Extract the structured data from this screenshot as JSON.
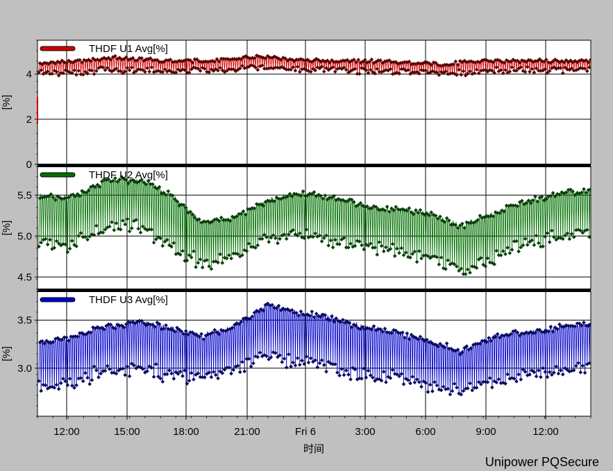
{
  "chart_data": {
    "type": "line",
    "x_axis": {
      "title": "时间",
      "ticks": [
        "12:00",
        "15:00",
        "18:00",
        "21:00",
        "Fri 6",
        "3:00",
        "6:00",
        "9:00",
        "12:00"
      ],
      "grid": true
    },
    "panels": [
      {
        "series_name": "THDF U1 Avg[%]",
        "color": "#d00000",
        "marker_color": "#5a0000",
        "ylabel": "[%]",
        "ylim": [
          0,
          5.5
        ],
        "y_ticks": [
          "4",
          "2",
          "0"
        ],
        "y_tick_values": [
          4,
          2,
          0
        ],
        "grid": true,
        "upper_envelope": [
          4.5,
          4.6,
          4.75,
          4.65,
          4.6,
          4.65,
          4.8,
          4.65,
          4.6,
          4.6,
          4.55,
          4.45,
          4.6,
          4.6,
          4.6,
          4.6
        ],
        "lower_envelope": [
          4.0,
          3.95,
          4.1,
          4.05,
          4.05,
          4.1,
          4.2,
          4.1,
          4.1,
          4.05,
          4.05,
          3.95,
          4.0,
          4.1,
          4.1,
          4.1
        ]
      },
      {
        "series_name": "THDF U2 Avg[%]",
        "color": "#007000",
        "marker_color": "#0b3d0b",
        "ylabel": "[%]",
        "ylim": [
          4.35,
          5.85
        ],
        "y_ticks": [
          "5.5",
          "5.0",
          "4.5"
        ],
        "y_tick_values": [
          5.5,
          5.0,
          4.5
        ],
        "grid": true,
        "upper_envelope": [
          5.5,
          5.5,
          5.7,
          5.72,
          5.55,
          5.2,
          5.25,
          5.45,
          5.55,
          5.5,
          5.4,
          5.35,
          5.3,
          5.15,
          5.3,
          5.45,
          5.55,
          5.58
        ],
        "lower_envelope": [
          4.75,
          4.72,
          4.95,
          5.0,
          4.72,
          4.55,
          4.6,
          4.85,
          4.9,
          4.8,
          4.75,
          4.7,
          4.6,
          4.4,
          4.6,
          4.8,
          4.85,
          4.9
        ]
      },
      {
        "series_name": "THDF U3 Avg[%]",
        "color": "#0000c8",
        "marker_color": "#0a0a60",
        "ylabel": "[%]",
        "ylim": [
          2.5,
          3.8
        ],
        "y_ticks": [
          "3.5",
          "3.0"
        ],
        "y_tick_values": [
          3.5,
          3.0
        ],
        "grid": true,
        "upper_envelope": [
          3.3,
          3.35,
          3.45,
          3.5,
          3.45,
          3.35,
          3.45,
          3.68,
          3.6,
          3.55,
          3.45,
          3.4,
          3.3,
          3.2,
          3.35,
          3.4,
          3.45,
          3.48
        ],
        "lower_envelope": [
          2.7,
          2.72,
          2.85,
          2.88,
          2.8,
          2.78,
          2.85,
          3.0,
          2.95,
          2.88,
          2.8,
          2.78,
          2.72,
          2.65,
          2.75,
          2.8,
          2.85,
          2.88
        ]
      }
    ]
  },
  "footer": {
    "brand": "Unipower PQSecure"
  }
}
